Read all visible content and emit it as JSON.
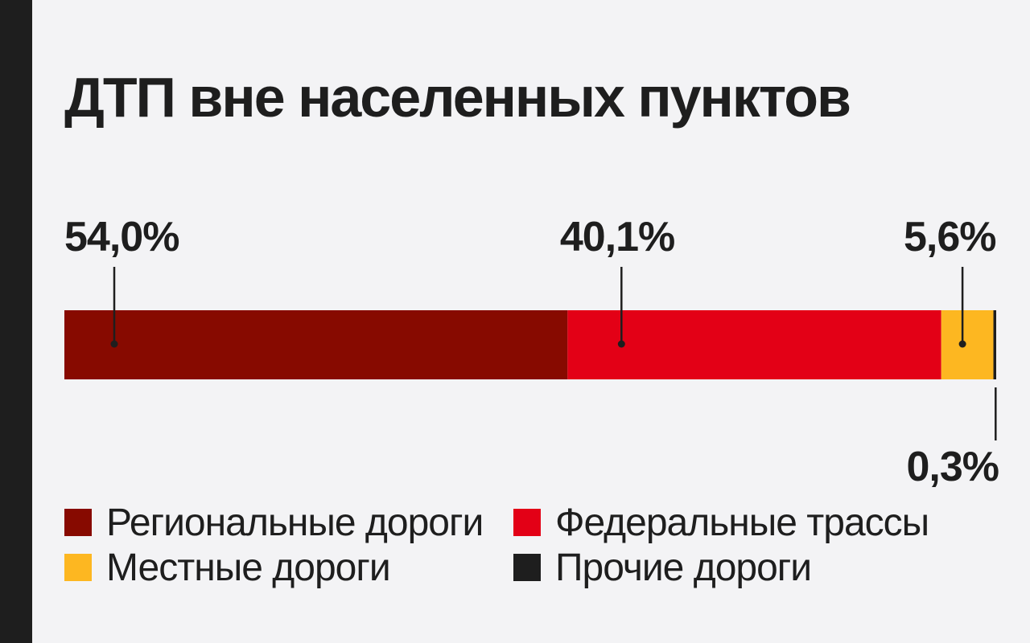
{
  "title": "ДТП вне населенных пунктов",
  "chart_data": {
    "type": "bar",
    "orientation": "horizontal-stacked",
    "unit": "%",
    "series": [
      {
        "name": "Региональные дороги",
        "value": 54.0,
        "label": "54,0%",
        "color": "#870a00"
      },
      {
        "name": "Федеральные трассы",
        "value": 40.1,
        "label": "40,1%",
        "color": "#e30016"
      },
      {
        "name": "Местные дороги",
        "value": 5.6,
        "label": "5,6%",
        "color": "#fdb721"
      },
      {
        "name": "Прочие дороги",
        "value": 0.3,
        "label": "0,3%",
        "color": "#1e1e1e"
      }
    ],
    "xlim": [
      0,
      100
    ],
    "legend_position": "bottom"
  }
}
